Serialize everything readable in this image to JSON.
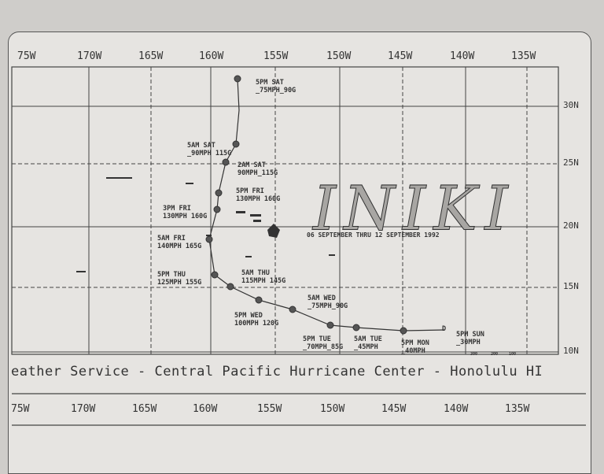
{
  "map": {
    "title": "INIKI",
    "subtitle": "06 SEPTEMBER THRU 12 SEPTEMBER 1992",
    "footer": "eather Service - Central Pacific Hurricane Center - Honolulu HI",
    "longitudes_top": [
      "75W",
      "170W",
      "165W",
      "160W",
      "155W",
      "150W",
      "145W",
      "140W",
      "135W"
    ],
    "longitudes_bottom": [
      "75W",
      "170W",
      "165W",
      "160W",
      "155W",
      "150W",
      "145W",
      "140W",
      "135W"
    ],
    "latitudes": [
      "30N",
      "25N",
      "20N",
      "15N",
      "10N"
    ],
    "scale": [
      "300",
      "200",
      "100"
    ],
    "track_labels": [
      {
        "time": "5PM SAT",
        "wind": "_75MPH_90G"
      },
      {
        "time": "5AM SAT",
        "wind": "_90MPH 115G"
      },
      {
        "time": "2AM SAT",
        "wind": "90MPH_115G"
      },
      {
        "time": "5PM FRI",
        "wind": "130MPH 160G"
      },
      {
        "time": "3PM FRI",
        "wind": "130MPH 160G"
      },
      {
        "time": "5AM FRI",
        "wind": "140MPH 165G"
      },
      {
        "time": "5PM THU",
        "wind": "125MPH 155G"
      },
      {
        "time": "5AM THU",
        "wind": "115MPH 145G"
      },
      {
        "time": "5PM WED",
        "wind": "100MPH 120G"
      },
      {
        "time": "5AM WED",
        "wind": "_75MPH_90G"
      },
      {
        "time": "5PM TUE",
        "wind": "_70MPH_85G"
      },
      {
        "time": "5AM TUE",
        "wind": "_45MPH"
      },
      {
        "time": "5PM MON",
        "wind": "_40MPH"
      },
      {
        "time": "5PM SUN",
        "wind": "_30MPH"
      }
    ],
    "origin_marker": "D"
  }
}
